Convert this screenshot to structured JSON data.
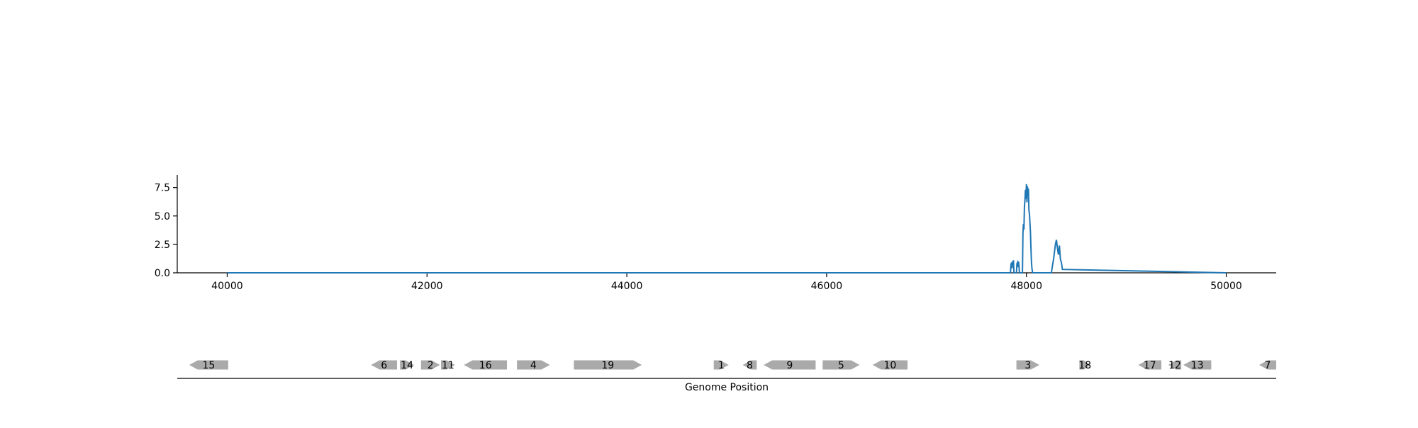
{
  "chart_data": [
    {
      "type": "line",
      "title": "",
      "xlabel": "",
      "ylabel": "",
      "xlim": [
        39500,
        50500
      ],
      "ylim": [
        0,
        8.6
      ],
      "x_ticks": [
        "40000",
        "42000",
        "44000",
        "46000",
        "48000",
        "50000"
      ],
      "y_ticks": [
        "0.0",
        "2.5",
        "5.0",
        "7.5"
      ],
      "grid": false,
      "color": "#1f77b4",
      "series": [
        {
          "x": [
            40000,
            47840,
            47845,
            47850,
            47855,
            47860,
            47865,
            47870,
            47875,
            47900,
            47905,
            47910,
            47915,
            47920,
            47925,
            47930,
            47960,
            47965,
            47970,
            47975,
            47980,
            47985,
            47990,
            47995,
            48000,
            48005,
            48010,
            48015,
            48020,
            48025,
            48030,
            48035,
            48040,
            48045,
            48050,
            48055,
            48060,
            48065,
            48250,
            48260,
            48270,
            48280,
            48290,
            48300,
            48310,
            48320,
            48330,
            48340,
            48350,
            48360,
            50000
          ],
          "y": [
            0,
            0,
            0.7,
            0.9,
            0.4,
            1.0,
            0.6,
            1.1,
            0,
            0,
            0.8,
            0.9,
            0.5,
            1.0,
            0.7,
            0,
            0,
            3.5,
            4.3,
            3.8,
            5.8,
            6.4,
            7.3,
            6.5,
            7.8,
            6.2,
            7.6,
            6.8,
            7.4,
            5.5,
            5.2,
            4.4,
            3.6,
            2.2,
            1.0,
            0.4,
            0.1,
            0,
            0,
            0.6,
            1.1,
            1.8,
            2.5,
            2.9,
            2.2,
            1.6,
            2.4,
            1.2,
            0.9,
            0.3,
            0
          ]
        }
      ]
    },
    {
      "type": "gene-track",
      "title": "",
      "xlabel": "Genome Position",
      "xlim": [
        39500,
        50500
      ],
      "genes": [
        {
          "label": "15",
          "start": 39620,
          "end": 40010,
          "strand": "-"
        },
        {
          "label": "6",
          "start": 41440,
          "end": 41700,
          "strand": "-"
        },
        {
          "label": "14",
          "start": 41730,
          "end": 41870,
          "strand": "+"
        },
        {
          "label": "2",
          "start": 41940,
          "end": 42130,
          "strand": "+"
        },
        {
          "label": "11",
          "start": 42140,
          "end": 42280,
          "strand": "+"
        },
        {
          "label": "16",
          "start": 42370,
          "end": 42800,
          "strand": "-"
        },
        {
          "label": "4",
          "start": 42900,
          "end": 43230,
          "strand": "+"
        },
        {
          "label": "19",
          "start": 43470,
          "end": 44150,
          "strand": "+"
        },
        {
          "label": "1",
          "start": 44870,
          "end": 45020,
          "strand": "+"
        },
        {
          "label": "8",
          "start": 45160,
          "end": 45300,
          "strand": "-"
        },
        {
          "label": "9",
          "start": 45370,
          "end": 45890,
          "strand": "-"
        },
        {
          "label": "5",
          "start": 45960,
          "end": 46330,
          "strand": "+"
        },
        {
          "label": "10",
          "start": 46460,
          "end": 46810,
          "strand": "-"
        },
        {
          "label": "3",
          "start": 47900,
          "end": 48130,
          "strand": "+"
        },
        {
          "label": "18",
          "start": 48530,
          "end": 48640,
          "strand": "+"
        },
        {
          "label": "17",
          "start": 49120,
          "end": 49350,
          "strand": "-"
        },
        {
          "label": "12",
          "start": 49420,
          "end": 49550,
          "strand": "-"
        },
        {
          "label": "13",
          "start": 49570,
          "end": 49850,
          "strand": "-"
        },
        {
          "label": "7",
          "start": 50330,
          "end": 50500,
          "strand": "-"
        }
      ]
    }
  ]
}
